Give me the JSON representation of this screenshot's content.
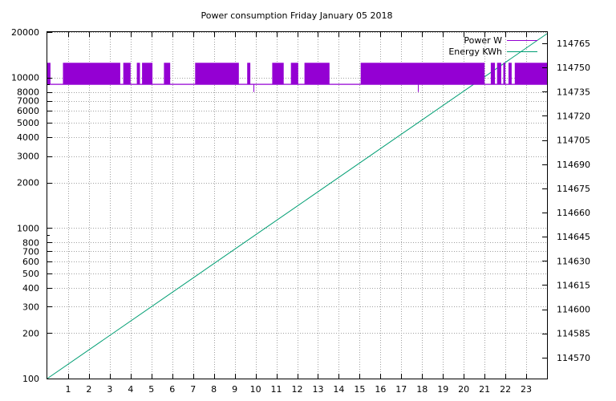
{
  "chart_data": {
    "type": "line",
    "title": "Power consumption Friday January 05 2018",
    "x": {
      "label": "",
      "range": [
        0,
        24
      ],
      "ticks": [
        1,
        2,
        3,
        4,
        5,
        6,
        7,
        8,
        9,
        10,
        11,
        12,
        13,
        14,
        15,
        16,
        17,
        18,
        19,
        20,
        21,
        22,
        23
      ]
    },
    "y_left": {
      "label": "",
      "scale": "log",
      "range": [
        100,
        20000
      ],
      "ticks": [
        100,
        200,
        300,
        400,
        500,
        600,
        700,
        800,
        1000,
        2000,
        3000,
        4000,
        5000,
        6000,
        7000,
        8000,
        10000,
        20000
      ],
      "tick_labels": [
        "100",
        "200",
        "300",
        "400",
        "500",
        "600",
        "700",
        "800",
        "1000",
        "2000",
        "3000",
        "4000",
        "5000",
        "6000",
        "7000",
        "8000",
        "10000",
        "20000"
      ]
    },
    "y_right": {
      "label": "",
      "scale": "linear",
      "range": [
        114557,
        114772
      ],
      "ticks": [
        114570,
        114585,
        114600,
        114615,
        114630,
        114645,
        114660,
        114675,
        114690,
        114705,
        114720,
        114735,
        114750,
        114765
      ]
    },
    "grid": true,
    "legend": {
      "position": "top-right"
    },
    "series": [
      {
        "name": "Power W",
        "axis": "left",
        "color": "#9400d3",
        "baseline_w": 9000,
        "high_w": 12500,
        "dip_values_w": [
          8000,
          8000
        ],
        "dip_hours": [
          9.9,
          17.8
        ],
        "high_intervals_h": [
          [
            0.0,
            0.15
          ],
          [
            0.75,
            3.5
          ],
          [
            3.65,
            4.0
          ],
          [
            4.3,
            4.45
          ],
          [
            4.55,
            5.05
          ],
          [
            5.6,
            5.9
          ],
          [
            7.1,
            9.2
          ],
          [
            9.6,
            9.75
          ],
          [
            10.8,
            11.35
          ],
          [
            11.7,
            12.05
          ],
          [
            12.35,
            13.55
          ],
          [
            15.05,
            21.0
          ],
          [
            21.3,
            21.5
          ],
          [
            21.6,
            21.8
          ],
          [
            21.9,
            22.0
          ],
          [
            22.15,
            22.3
          ],
          [
            22.45,
            24.0
          ]
        ]
      },
      {
        "name": "Energy KWh",
        "axis": "right",
        "color": "#009e73",
        "x": [
          0,
          24
        ],
        "y": [
          114557,
          114771
        ]
      }
    ]
  }
}
